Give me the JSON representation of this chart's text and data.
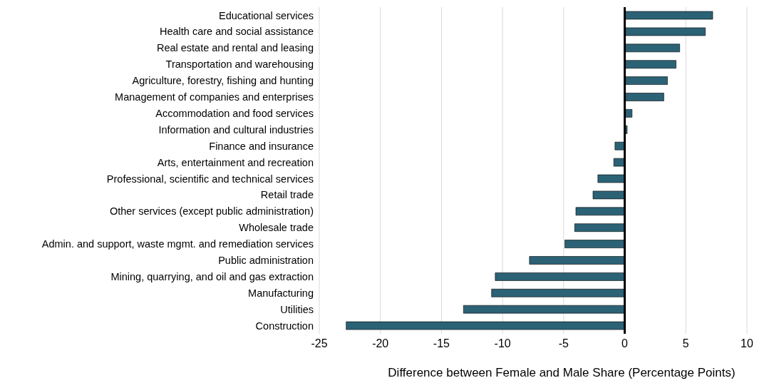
{
  "chart_data": {
    "type": "bar",
    "orientation": "horizontal",
    "xlabel": "Difference between Female and Male Share (Percentage Points)",
    "categories": [
      "Educational services",
      "Health care and social assistance",
      "Real estate and rental and leasing",
      "Transportation and warehousing",
      "Agriculture, forestry, fishing and hunting",
      "Management of companies and enterprises",
      "Accommodation and food services",
      "Information and cultural industries",
      "Finance and insurance",
      "Arts, entertainment and recreation",
      "Professional, scientific and technical services",
      "Retail trade",
      "Other services (except public administration)",
      "Wholesale trade",
      "Admin. and support, waste mgmt. and remediation services",
      "Public administration",
      "Mining, quarrying, and oil and gas extraction",
      "Manufacturing",
      "Utilities",
      "Construction"
    ],
    "values": [
      7.2,
      6.6,
      4.5,
      4.2,
      3.5,
      3.2,
      0.6,
      0.2,
      -0.8,
      -0.9,
      -2.2,
      -2.6,
      -4.0,
      -4.1,
      -4.9,
      -7.8,
      -10.6,
      -10.9,
      -13.2,
      -22.8
    ],
    "color": "#2b6275",
    "xlim": [
      -25,
      10
    ],
    "xticks": [
      -25,
      -20,
      -15,
      -10,
      -5,
      0,
      5,
      10
    ],
    "grid": "x",
    "legend": false,
    "ref_lines": [
      {
        "axis": "x",
        "value": 0,
        "color": "#000000"
      }
    ]
  }
}
